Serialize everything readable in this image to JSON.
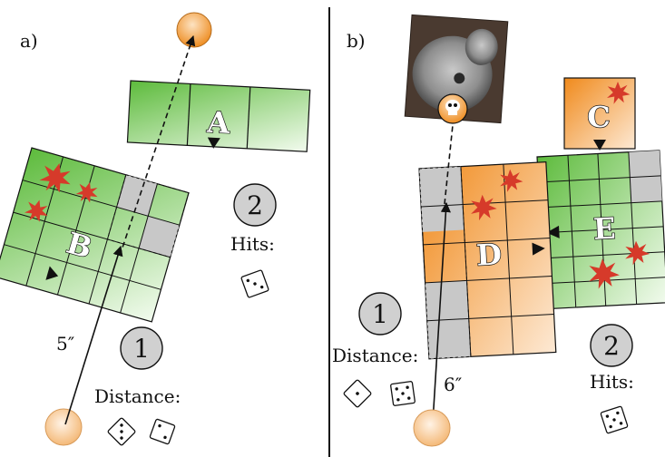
{
  "panels": {
    "a": {
      "label": "a)",
      "distance_value": "5″",
      "distance_label": "Distance:",
      "hits_label": "Hits:",
      "step_1": "1",
      "step_2": "2",
      "unit_A": "A",
      "unit_B": "B"
    },
    "b": {
      "label": "b)",
      "distance_value": "6″",
      "distance_label": "Distance:",
      "hits_label": "Hits:",
      "step_1": "1",
      "step_2": "2",
      "unit_C": "C",
      "unit_D": "D",
      "unit_E": "E"
    }
  },
  "colors": {
    "green_dark": "#5dbb3c",
    "green_light": "#eef9e8",
    "orange_dark": "#f08a1c",
    "orange_light": "#fde6cc",
    "gray_cell": "#c8c8c8",
    "hit_marker": "#d63a2a",
    "token_fill": "#fbd7b0"
  },
  "icons": [
    "dice-icon",
    "skull-icon",
    "hit-marker-icon",
    "facing-arrow-icon",
    "model-token-icon"
  ]
}
